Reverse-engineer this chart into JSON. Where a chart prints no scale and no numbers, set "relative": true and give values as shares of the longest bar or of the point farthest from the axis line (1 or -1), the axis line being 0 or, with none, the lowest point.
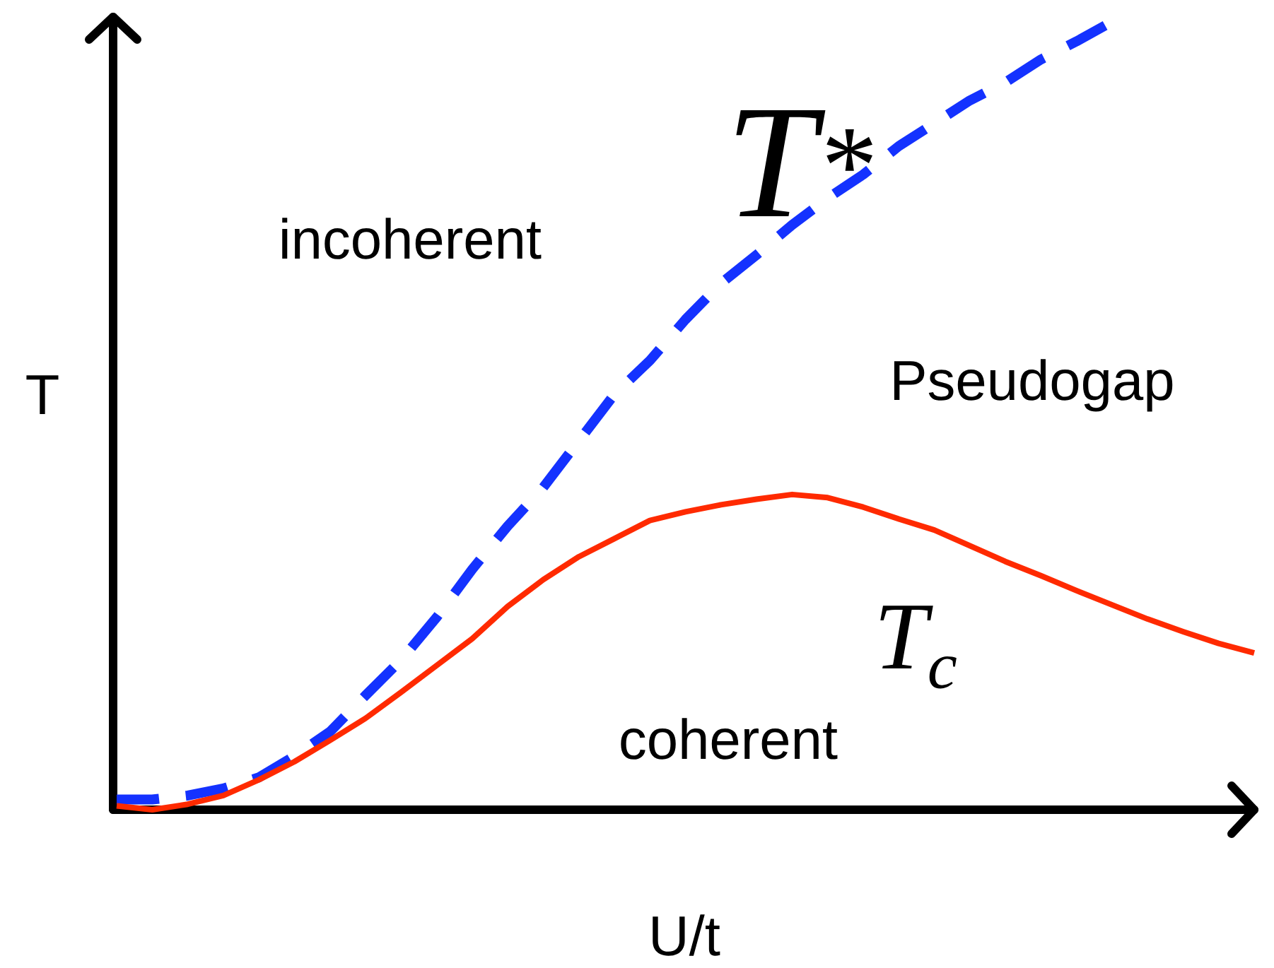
{
  "chart_data": {
    "type": "line",
    "relative": true,
    "xlabel": "U/t",
    "ylabel": "T",
    "categories": [
      null,
      null,
      null,
      null,
      null,
      null,
      null,
      null,
      null,
      null,
      null,
      null,
      null,
      null,
      null,
      null,
      null,
      null,
      null,
      null,
      null,
      null,
      null,
      null,
      null,
      null,
      null,
      null,
      null,
      null,
      null,
      null,
      null
    ],
    "series": [
      {
        "name": "T$^{*}$",
        "color": "#1432ff",
        "line_style": "dashed",
        "values": [
          0.013,
          0.013,
          0.018,
          0.027,
          0.041,
          0.068,
          0.099,
          0.145,
          0.19,
          0.244,
          0.305,
          0.36,
          0.409,
          0.468,
          0.527,
          0.57,
          0.622,
          0.668,
          0.704,
          0.742,
          0.776,
          0.806,
          0.842,
          0.871,
          0.9,
          0.923,
          0.952,
          0.975,
          1.0,
          null,
          null,
          null,
          null
        ]
      },
      {
        "name": "T$_{c}$",
        "color": "#ff2a00",
        "line_style": "solid",
        "values": [
          0.005,
          0,
          0.007,
          0.018,
          0.038,
          0.061,
          0.088,
          0.116,
          0.149,
          0.183,
          0.217,
          0.258,
          0.292,
          0.321,
          0.344,
          0.367,
          0.378,
          0.387,
          0.394,
          0.4,
          0.396,
          0.384,
          0.369,
          0.355,
          0.335,
          0.315,
          0.297,
          0.278,
          0.26,
          0.242,
          0.226,
          0.211,
          0.199
        ]
      }
    ],
    "annotations": [
      "incoherent",
      "Pseudogap",
      "coherent"
    ]
  }
}
